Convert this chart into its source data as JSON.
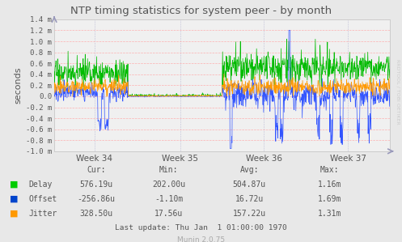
{
  "title": "NTP timing statistics for system peer - by month",
  "ylabel": "seconds",
  "background_color": "#e8e8e8",
  "plot_bg_color": "#f0f0f0",
  "grid_color": "#ffaaaa",
  "ylim_low": -0.001,
  "ylim_high": 0.0014,
  "yticks": [
    -0.001,
    -0.0008,
    -0.0006,
    -0.0004,
    -0.0002,
    0.0,
    0.0002,
    0.0004,
    0.0006,
    0.0008,
    0.001,
    0.0012,
    0.0014
  ],
  "ytick_labels": [
    "-1.0 m",
    "-0.8 m",
    "-0.6 m",
    "-0.4 m",
    "-0.2 m",
    "0.0",
    "0.2 m",
    "0.4 m",
    "0.6 m",
    "0.8 m",
    "1.0 m",
    "1.2 m",
    "1.4 m"
  ],
  "xtick_labels": [
    "Week 34",
    "Week 35",
    "Week 36",
    "Week 37"
  ],
  "legend_labels": [
    "Delay",
    "Offset",
    "Jitter"
  ],
  "legend_colors": [
    "#00bb00",
    "#3355ff",
    "#ff9900"
  ],
  "legend_colors_swatch": [
    "#00cc00",
    "#0044cc",
    "#ff9900"
  ],
  "stats_header": [
    "Cur:",
    "Min:",
    "Avg:",
    "Max:"
  ],
  "stats_delay": [
    "576.19u",
    "202.00u",
    "504.87u",
    "1.16m"
  ],
  "stats_offset": [
    "-256.86u",
    "-1.10m",
    "16.72u",
    "1.69m"
  ],
  "stats_jitter": [
    "328.50u",
    "17.56u",
    "157.22u",
    "1.31m"
  ],
  "last_update": "Last update: Thu Jan  1 01:00:00 1970",
  "munin_version": "Munin 2.0.75",
  "rrdtool_text": "RRDTOOL / TOBI OETIKER",
  "title_color": "#555555",
  "text_color": "#555555",
  "arrow_color": "#9999bb"
}
